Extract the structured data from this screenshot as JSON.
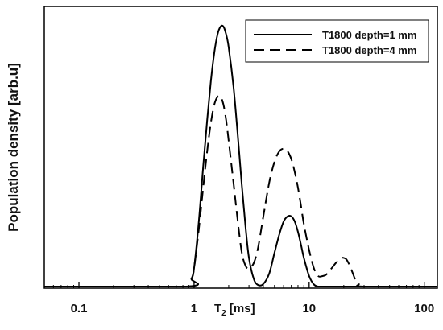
{
  "chart_data": {
    "type": "line",
    "title": "",
    "xlabel": "T",
    "xlabel_sub": "2",
    "xlabel_unit": " [ms]",
    "ylabel": "Population density [arb.u]",
    "x_scale": "log",
    "xlim": [
      0.05,
      130
    ],
    "ylim": [
      0,
      1.05
    ],
    "x_ticks": [
      0.1,
      1,
      10,
      100
    ],
    "x_tick_labels": [
      "0.1",
      "1",
      "10",
      "100"
    ],
    "grid": false,
    "legend": "top-right",
    "series": [
      {
        "name": "T1800 depth=1 mm",
        "style": "solid",
        "color": "#000000",
        "x": [
          0.05,
          0.85,
          0.95,
          1.0,
          1.1,
          1.2,
          1.3,
          1.4,
          1.5,
          1.6,
          1.7,
          1.8,
          1.9,
          2.0,
          2.2,
          2.4,
          2.6,
          2.8,
          3.0,
          3.3,
          3.6,
          4.0,
          4.5,
          5.0,
          5.5,
          6.0,
          6.5,
          7.0,
          7.5,
          8.0,
          8.5,
          9.0,
          10.0,
          11.0,
          12.0,
          13.0,
          15.0,
          130
        ],
        "y": [
          0.0,
          0.0,
          0.03,
          0.07,
          0.25,
          0.46,
          0.64,
          0.79,
          0.9,
          0.97,
          1.0,
          1.0,
          0.97,
          0.92,
          0.77,
          0.58,
          0.39,
          0.23,
          0.11,
          0.03,
          0.006,
          0.01,
          0.05,
          0.13,
          0.2,
          0.25,
          0.27,
          0.27,
          0.25,
          0.21,
          0.16,
          0.11,
          0.04,
          0.008,
          0.0,
          0.0,
          0.0,
          0.0
        ]
      },
      {
        "name": "T1800 depth=4 mm",
        "style": "dashed",
        "color": "#000000",
        "x": [
          0.05,
          0.85,
          0.95,
          1.0,
          1.1,
          1.2,
          1.3,
          1.4,
          1.5,
          1.6,
          1.7,
          1.8,
          1.9,
          2.0,
          2.2,
          2.4,
          2.6,
          2.8,
          3.0,
          3.3,
          3.6,
          4.0,
          4.5,
          5.0,
          5.5,
          6.0,
          6.5,
          7.0,
          7.5,
          8.0,
          8.5,
          9.0,
          10.0,
          11.0,
          12.0,
          13.0,
          14.0,
          15.0,
          16.0,
          17.0,
          18.0,
          19.0,
          20.0,
          21.0,
          22.0,
          23.0,
          24.0,
          25.0,
          27.0,
          30.0,
          130
        ],
        "y": [
          0.0,
          0.0,
          0.03,
          0.07,
          0.22,
          0.38,
          0.52,
          0.63,
          0.7,
          0.73,
          0.73,
          0.7,
          0.64,
          0.56,
          0.4,
          0.25,
          0.13,
          0.08,
          0.07,
          0.09,
          0.15,
          0.27,
          0.4,
          0.48,
          0.52,
          0.53,
          0.52,
          0.49,
          0.44,
          0.38,
          0.31,
          0.24,
          0.14,
          0.07,
          0.04,
          0.04,
          0.045,
          0.06,
          0.075,
          0.09,
          0.1,
          0.11,
          0.11,
          0.105,
          0.09,
          0.07,
          0.05,
          0.03,
          0.01,
          0.0,
          0.0
        ]
      }
    ]
  }
}
